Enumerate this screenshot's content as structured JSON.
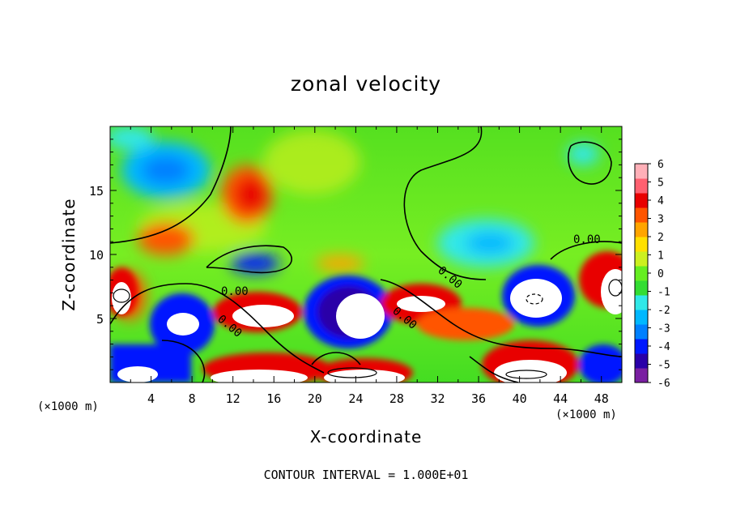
{
  "chart_data": {
    "type": "heatmap",
    "title": "zonal velocity",
    "xlabel": "X-coordinate",
    "ylabel": "Z-coordinate",
    "x_unit": "(×1000 m)",
    "x_unit_right": "(×1000 m)",
    "xlim": [
      0,
      50
    ],
    "ylim": [
      0,
      20
    ],
    "x_ticks": [
      4,
      8,
      12,
      16,
      20,
      24,
      28,
      32,
      36,
      40,
      44,
      48
    ],
    "y_ticks": [
      5,
      10,
      15
    ],
    "colorbar": {
      "ticks": [
        6,
        5,
        4,
        3,
        2,
        1,
        0,
        -1,
        -2,
        -3,
        -4,
        -5,
        -6
      ],
      "range": [
        -6,
        6
      ],
      "colors": [
        "#7a1fa2",
        "#2a00a8",
        "#0018ff",
        "#0080ff",
        "#00b8ff",
        "#30e8e8",
        "#33dd33",
        "#66ee22",
        "#ccf020",
        "#ffe000",
        "#ffa500",
        "#ff5500",
        "#e80000",
        "#ff6070",
        "#ffb0b8"
      ]
    },
    "contour_labels": [
      "0.00",
      "0.00",
      "0.00",
      "0.00",
      "0.00"
    ],
    "contour_interval": "CONTOUR INTERVAL = 1.000E+01"
  }
}
